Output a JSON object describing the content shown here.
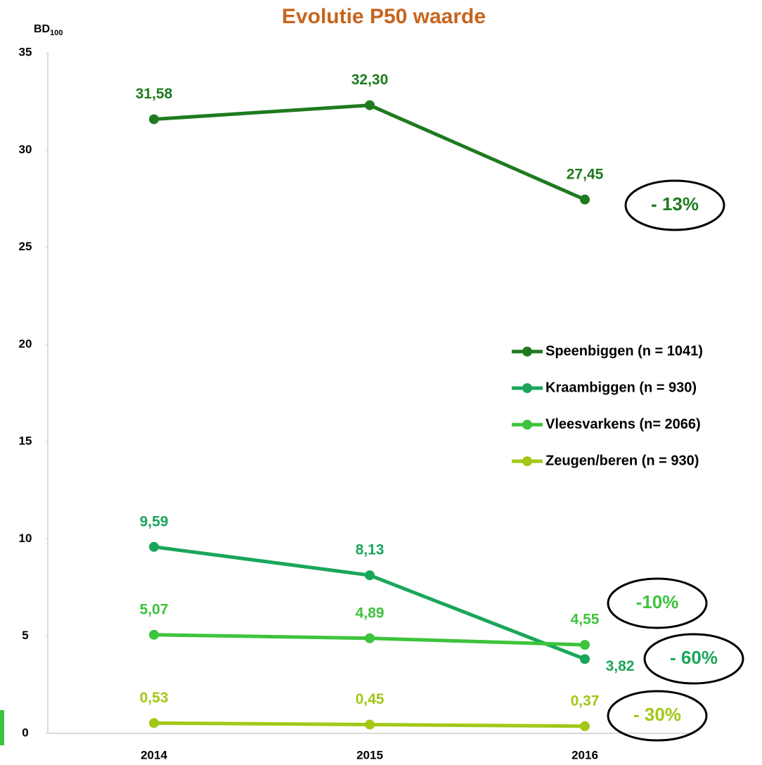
{
  "chart_data": {
    "type": "line",
    "title": "Evolutie P50 waarde",
    "y_label": {
      "main": "BD",
      "sub": "100"
    },
    "categories": [
      "2014",
      "2015",
      "2016"
    ],
    "series": [
      {
        "name": "Speenbiggen (n = 1041)",
        "color": "#1f7a1f",
        "values": [
          31.58,
          32.3,
          27.45
        ],
        "value_labels": [
          "31,58",
          "32,30",
          "27,45"
        ]
      },
      {
        "name": "Kraambiggen (n = 930)",
        "color": "#1aa65a",
        "values": [
          9.59,
          8.13,
          3.82
        ],
        "value_labels": [
          "9,59",
          "8,13",
          "3,82"
        ]
      },
      {
        "name": "Vleesvarkens (n= 2066)",
        "color": "#3cc43c",
        "values": [
          5.07,
          4.89,
          4.55
        ],
        "value_labels": [
          "5,07",
          "4,89",
          "4,55"
        ]
      },
      {
        "name": "Zeugen/beren (n = 930)",
        "color": "#a2c816",
        "values": [
          0.53,
          0.45,
          0.37
        ],
        "value_labels": [
          "0,53",
          "0,45",
          "0,37"
        ]
      }
    ],
    "annotations": [
      "- 13%",
      "-10%",
      "- 60%",
      "- 30%"
    ],
    "ylim": [
      0,
      35
    ],
    "yticks": [
      0,
      5,
      10,
      15,
      20,
      25,
      30,
      35
    ],
    "grid": false
  }
}
